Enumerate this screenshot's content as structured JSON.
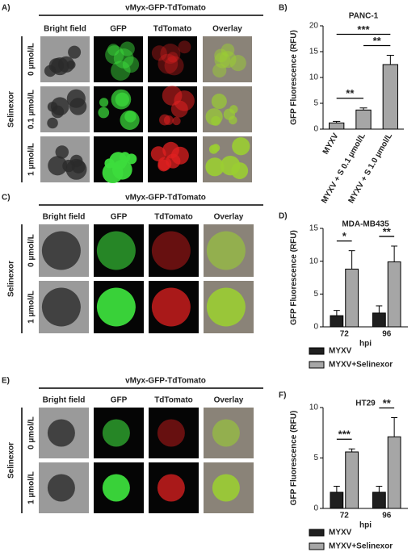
{
  "panels": [
    {
      "label": "A)",
      "title": "vMyx-GFP-TdTomato",
      "columns": [
        "Bright field",
        "GFP",
        "TdTomato",
        "Overlay"
      ],
      "group": "Selinexor",
      "rows": [
        "0 µmol/L",
        "0.1 µmol/L",
        "1 µmol/L"
      ]
    },
    {
      "label": "C)",
      "title": "vMyx-GFP-TdTomato",
      "columns": [
        "Bright field",
        "GFP",
        "TdTomato",
        "Overlay"
      ],
      "group": "Selinexor",
      "rows": [
        "0 µmol/L",
        "1 µmol/L"
      ]
    },
    {
      "label": "E)",
      "title": "vMyx-GFP-TdTomato",
      "columns": [
        "Bright field",
        "GFP",
        "TdTomato",
        "Overlay"
      ],
      "group": "Selinexor",
      "rows": [
        "0 µmol/L",
        "1 µmol/L"
      ]
    }
  ],
  "chart_data": [
    {
      "label": "B)",
      "type": "bar",
      "title": "PANC-1",
      "y_label": "GFP Fluorescence (RFU)",
      "categories": [
        "MYXV",
        "MYXV + S 0.1 µmol/L",
        "MYXV + S 1.0 µmol/L"
      ],
      "values": [
        1.2,
        3.7,
        12.5
      ],
      "errors": [
        0.3,
        0.4,
        1.8
      ],
      "color": "#a6a6a6",
      "ylim": [
        0,
        20
      ],
      "yticks": [
        0,
        5,
        10,
        15,
        20
      ],
      "significance": [
        {
          "label": "**",
          "between": [
            0,
            1
          ]
        },
        {
          "label": "**",
          "between": [
            1,
            2
          ]
        },
        {
          "label": "***",
          "between": [
            0,
            2
          ]
        }
      ]
    },
    {
      "label": "D)",
      "type": "grouped_bar",
      "title": "MDA-MB435",
      "y_label": "GFP Fluorescence (RFU)",
      "x_label": "hpi",
      "categories": [
        "72",
        "96"
      ],
      "series": [
        {
          "name": "MYXV",
          "color": "#1f1f1f",
          "values": [
            1.7,
            2.1
          ],
          "errors": [
            0.8,
            1.1
          ]
        },
        {
          "name": "MYXV+Selinexor",
          "color": "#a6a6a6",
          "values": [
            8.8,
            9.9
          ],
          "errors": [
            2.8,
            2.4
          ]
        }
      ],
      "ylim": [
        0,
        15
      ],
      "yticks": [
        0,
        5,
        10,
        15
      ],
      "significance": [
        {
          "label": "*",
          "category": 0
        },
        {
          "label": "**",
          "category": 1
        }
      ]
    },
    {
      "label": "F)",
      "type": "grouped_bar",
      "title": "HT29",
      "y_label": "GFP Fluorescence (RFU)",
      "x_label": "hpi",
      "categories": [
        "72",
        "96"
      ],
      "series": [
        {
          "name": "MYXV",
          "color": "#1f1f1f",
          "values": [
            1.6,
            1.6
          ],
          "errors": [
            0.6,
            0.6
          ]
        },
        {
          "name": "MYXV+Selinexor",
          "color": "#a6a6a6",
          "values": [
            5.6,
            7.1
          ],
          "errors": [
            0.3,
            1.9
          ]
        }
      ],
      "ylim": [
        0,
        10
      ],
      "yticks": [
        0,
        5,
        10
      ],
      "significance": [
        {
          "label": "***",
          "category": 0
        },
        {
          "label": "**",
          "category": 1
        }
      ]
    }
  ]
}
